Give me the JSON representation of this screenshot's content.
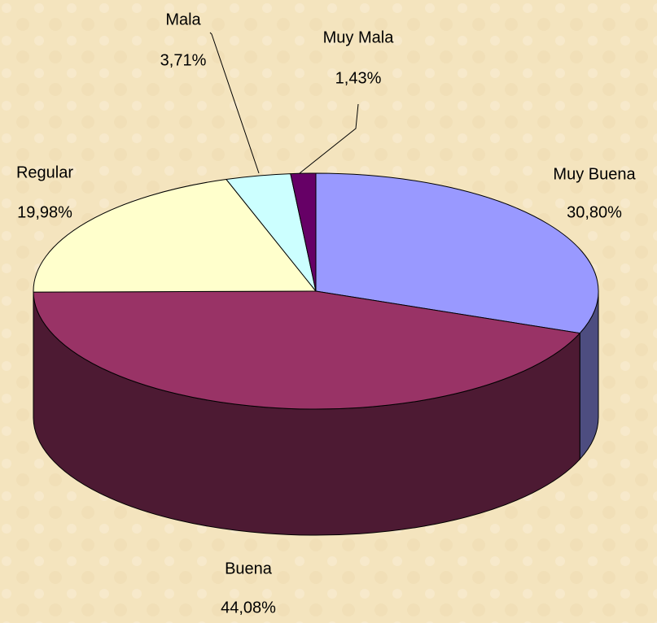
{
  "chart_data": {
    "type": "pie3d",
    "categories": [
      "Muy Buena",
      "Buena",
      "Regular",
      "Mala",
      "Muy Mala"
    ],
    "values": [
      30.8,
      44.08,
      19.98,
      3.71,
      1.43
    ],
    "value_labels": [
      "30,80%",
      "44,08%",
      "19,98%",
      "3,71%",
      "1,43%"
    ],
    "colors": [
      "#9999ff",
      "#993366",
      "#ffffcc",
      "#ccffff",
      "#660066"
    ]
  }
}
